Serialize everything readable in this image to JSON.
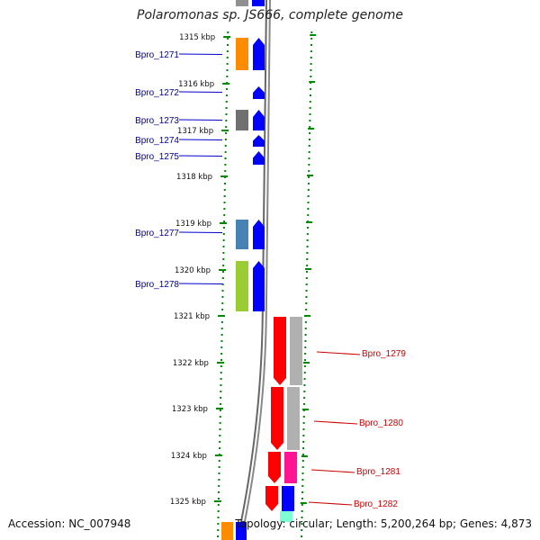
{
  "header": {
    "title": "Polaromonas sp. JS666, complete genome"
  },
  "footer": {
    "accession": "Accession: NC_007948",
    "info": "Topology: circular; Length: 5,200,264 bp; Genes: 4,873"
  },
  "colors": {
    "background": "#ffffff",
    "tick_green": "#008800",
    "left_label": "#000099",
    "right_label": "#cc0000",
    "backbone": "#777777",
    "strand_blue": "#0000ff",
    "strand_red": "#ff0000"
  },
  "axis": {
    "unit": "kbp",
    "ticks": [
      "1315 kbp",
      "1316 kbp",
      "1317 kbp",
      "1318 kbp",
      "1319 kbp",
      "1320 kbp",
      "1321 kbp",
      "1322 kbp",
      "1323 kbp",
      "1324 kbp",
      "1325 kbp"
    ]
  },
  "genes_left": [
    {
      "label": "Bpro_1271",
      "cog_color": "#ff8c00",
      "strand_color": "#0000ff"
    },
    {
      "label": "Bpro_1272",
      "cog_color": "",
      "strand_color": "#0000ff"
    },
    {
      "label": "Bpro_1273",
      "cog_color": "#707070",
      "strand_color": "#0000ff"
    },
    {
      "label": "Bpro_1274",
      "cog_color": "",
      "strand_color": "#0000ff"
    },
    {
      "label": "Bpro_1275",
      "cog_color": "",
      "strand_color": "#0000ff"
    },
    {
      "label": "Bpro_1277",
      "cog_color": "#4682b4",
      "strand_color": "#0000ff"
    },
    {
      "label": "Bpro_1278",
      "cog_color": "#9acd32",
      "strand_color": "#0000ff"
    }
  ],
  "genes_right": [
    {
      "label": "Bpro_1279",
      "cog_color": "#b0b0b0",
      "strand_color": "#ff0000"
    },
    {
      "label": "Bpro_1280",
      "cog_color": "#b0b0b0",
      "strand_color": "#ff0000"
    },
    {
      "label": "Bpro_1281",
      "cog_color": "#ff1493",
      "strand_color": "#ff0000"
    },
    {
      "label": "Bpro_1282",
      "cog_color": "#0000ff",
      "strand_color": "#ff0000"
    }
  ]
}
